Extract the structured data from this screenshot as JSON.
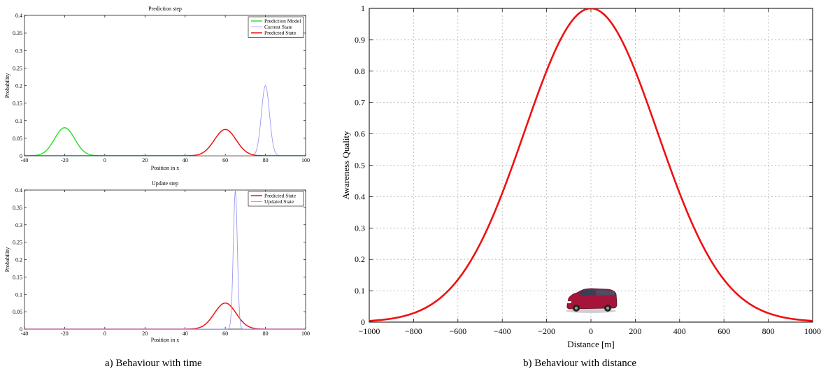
{
  "chart_data": [
    {
      "type": "line",
      "title": "Prediction step",
      "xlabel": "Position in x",
      "ylabel": "Probability",
      "xlim": [
        -40,
        100
      ],
      "ylim": [
        0,
        0.4
      ],
      "xticks": [
        -40,
        -20,
        0,
        20,
        40,
        60,
        80,
        100
      ],
      "yticks": [
        0,
        0.05,
        0.1,
        0.15,
        0.2,
        0.25,
        0.3,
        0.35,
        0.4
      ],
      "legend_position": "top-right",
      "series": [
        {
          "name": "Prediction Model",
          "color": "#33dd33",
          "shape": "gaussian",
          "mean": -20,
          "peak": 0.08,
          "sigma": 5
        },
        {
          "name": "Current State",
          "color": "#9999ee",
          "shape": "gaussian",
          "mean": 80,
          "peak": 0.2,
          "sigma": 2
        },
        {
          "name": "Predicted State",
          "color": "#ee1111",
          "shape": "gaussian",
          "mean": 60,
          "peak": 0.075,
          "sigma": 5.4
        }
      ]
    },
    {
      "type": "line",
      "title": "Update step",
      "xlabel": "Position in x",
      "ylabel": "Probability",
      "xlim": [
        -40,
        100
      ],
      "ylim": [
        0,
        0.4
      ],
      "xticks": [
        -40,
        -20,
        0,
        20,
        40,
        60,
        80,
        100
      ],
      "yticks": [
        0,
        0.05,
        0.1,
        0.15,
        0.2,
        0.25,
        0.3,
        0.35,
        0.4
      ],
      "legend_position": "top-right",
      "series": [
        {
          "name": "Predicted State",
          "color": "#ee1111",
          "shape": "gaussian",
          "mean": 60,
          "peak": 0.075,
          "sigma": 5.4
        },
        {
          "name": "Updated State",
          "color": "#9999ee",
          "shape": "gaussian",
          "mean": 65,
          "peak": 0.4,
          "sigma": 1
        }
      ]
    },
    {
      "type": "line",
      "title": "",
      "xlabel": "Distance [m]",
      "ylabel": "Awareness Quality",
      "xlim": [
        -1000,
        1000
      ],
      "ylim": [
        0,
        1
      ],
      "xticks": [
        -1000,
        -800,
        -600,
        -400,
        -200,
        0,
        200,
        400,
        600,
        800,
        1000
      ],
      "xtick_labels": [
        "−1000",
        "−800",
        "−600",
        "−400",
        "−200",
        "0",
        "200",
        "400",
        "600",
        "800",
        "1000"
      ],
      "yticks": [
        0,
        0.1,
        0.2,
        0.3,
        0.4,
        0.5,
        0.6,
        0.7,
        0.8,
        0.9,
        1
      ],
      "grid": true,
      "series": [
        {
          "color": "#ee1111",
          "shape": "gaussian",
          "mean": 0,
          "peak": 1,
          "sigma": 300
        }
      ],
      "annotation": "car-icon"
    }
  ],
  "captions": {
    "left": "a) Behaviour with time",
    "right": "b) Behaviour with distance"
  }
}
